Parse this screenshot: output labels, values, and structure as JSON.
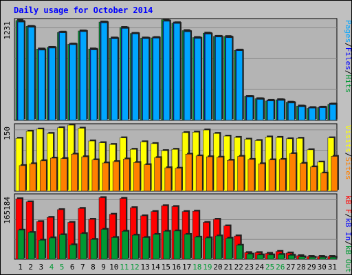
{
  "chart_data": {
    "type": "bar",
    "title": "Daily usage for October 2014",
    "categories": [
      "1",
      "2",
      "3",
      "4",
      "5",
      "6",
      "7",
      "8",
      "9",
      "10",
      "11",
      "12",
      "13",
      "14",
      "15",
      "16",
      "17",
      "18",
      "19",
      "20",
      "21",
      "22",
      "23",
      "24",
      "25",
      "26",
      "27",
      "28",
      "29",
      "30",
      "31"
    ],
    "weekend_days": [
      "4",
      "5",
      "11",
      "12",
      "18",
      "19",
      "25",
      "26"
    ],
    "weekday_color": "#000000",
    "weekend_color": "#009933",
    "background_color": "#c0c0c0",
    "plot_background_color": "#b4b4b4",
    "grid": true,
    "panels": [
      {
        "id": "requests",
        "ymax_label": "1231",
        "ymax": 1231,
        "legend": [
          {
            "label": "Pages",
            "color": "#00a5ff"
          },
          {
            "label": "/",
            "color": "#000000"
          },
          {
            "label": "Files",
            "color": "#0000ff"
          },
          {
            "label": "/",
            "color": "#000000"
          },
          {
            "label": "Hits",
            "color": "#009933"
          }
        ],
        "series": [
          {
            "name": "Hits",
            "color": "#009933",
            "values": [
              1224,
              1152,
              874,
              894,
              1077,
              932,
              1096,
              875,
              1205,
              1009,
              1138,
              1065,
              1009,
              1011,
              1235,
              1192,
              1100,
              1015,
              1069,
              1029,
              1027,
              857,
              294,
              265,
              237,
              252,
              222,
              175,
              147,
              156,
              196
            ]
          },
          {
            "name": "Files",
            "color": "#0000ff",
            "values": [
              1211,
              1149,
              873,
              893,
              1081,
              935,
              1094,
              871,
              1203,
              1008,
              1133,
              1065,
              1008,
              1015,
              1221,
              1196,
              1092,
              1011,
              1064,
              1029,
              1021,
              861,
              293,
              263,
              245,
              250,
              218,
              172,
              156,
              161,
              199
            ]
          },
          {
            "name": "Pages",
            "color": "#00a5ff",
            "values": [
              1205,
              1142,
              861,
              886,
              1074,
              928,
              1088,
              864,
              1196,
              1000,
              1127,
              1060,
              1002,
              1008,
              1215,
              1188,
              1086,
              1004,
              1057,
              1022,
              1014,
              854,
              287,
              257,
              238,
              244,
              212,
              166,
              150,
              155,
              193
            ]
          }
        ]
      },
      {
        "id": "visits",
        "ymax_label": "150",
        "ymax": 150,
        "legend": [
          {
            "label": "Visits",
            "color": "#ffff00"
          },
          {
            "label": "/",
            "color": "#000000"
          },
          {
            "label": "Sites",
            "color": "#ff8000"
          }
        ],
        "series": [
          {
            "name": "Visits",
            "color": "#ffff00",
            "values": [
              120,
              136,
              141,
              131,
              144,
              150,
              143,
              114,
              110,
              106,
              121,
              95,
              112,
              108,
              92,
              95,
              133,
              134,
              139,
              131,
              125,
              122,
              118,
              115,
              123,
              122,
              119,
              120,
              94,
              66,
              121
            ]
          },
          {
            "name": "Sites",
            "color": "#ff8000",
            "values": [
              58,
              62,
              69,
              75,
              74,
              84,
              78,
              71,
              64,
              67,
              73,
              65,
              60,
              76,
              53,
              52,
              84,
              80,
              78,
              77,
              70,
              79,
              72,
              62,
              71,
              72,
              85,
              63,
              55,
              41,
              79
            ]
          }
        ]
      },
      {
        "id": "kbytes",
        "ymax_label": "165184",
        "ymax": 165184,
        "legend": [
          {
            "label": "kB F",
            "color": "#ff0000"
          },
          {
            "label": "/",
            "color": "#000000"
          },
          {
            "label": "kB In",
            "color": "#0000ff"
          },
          {
            "label": "/",
            "color": "#000000"
          },
          {
            "label": "kB Out",
            "color": "#009933"
          }
        ],
        "series": [
          {
            "name": "kB F",
            "color": "#ff0000",
            "values": [
              156000,
              148000,
              97000,
              108000,
              128000,
              95000,
              131000,
              103000,
              159000,
              116000,
              157000,
              133000,
              112000,
              123000,
              138000,
              136000,
              123000,
              124000,
              95000,
              103000,
              86000,
              60000,
              17000,
              17000,
              15000,
              20000,
              16000,
              9000,
              7000,
              7000,
              7000
            ]
          },
          {
            "name": "kB In",
            "color": "#0000ff",
            "values": [
              0,
              0,
              0,
              0,
              0,
              0,
              0,
              0,
              0,
              0,
              0,
              0,
              0,
              0,
              0,
              0,
              0,
              0,
              0,
              0,
              0,
              0,
              0,
              0,
              0,
              0,
              0,
              0,
              0,
              0,
              0
            ]
          },
          {
            "name": "kB Out",
            "color": "#009933",
            "values": [
              75000,
              69000,
              49000,
              55000,
              63000,
              37000,
              66000,
              51000,
              77000,
              56000,
              72000,
              62000,
              56000,
              64000,
              72000,
              73000,
              64000,
              57000,
              55000,
              60000,
              54000,
              36000,
              13000,
              11000,
              11000,
              12000,
              10000,
              6000,
              5000,
              5000,
              5000
            ]
          }
        ]
      }
    ]
  }
}
